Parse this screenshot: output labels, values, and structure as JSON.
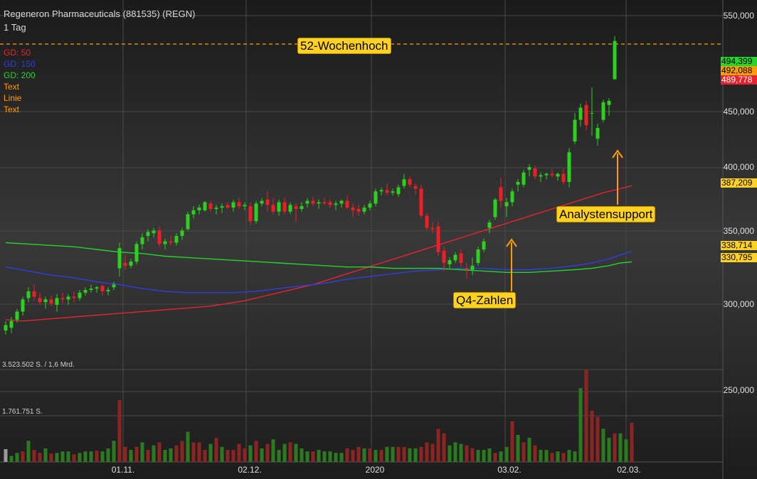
{
  "header": {
    "title": "Regeneron Pharmaceuticals (881535) (REGN)",
    "interval": "1 Tag"
  },
  "legend": [
    {
      "label": "GD: 50",
      "color": "#e8232f"
    },
    {
      "label": "GD: 150",
      "color": "#2f3fe0"
    },
    {
      "label": "GD: 200",
      "color": "#22d62a"
    },
    {
      "label": "Text",
      "color": "#ff9d00"
    },
    {
      "label": "Linie",
      "color": "#ff9d00"
    },
    {
      "label": "Text",
      "color": "#ff9d00"
    }
  ],
  "annotations": {
    "high52": "52-Wochenhoch",
    "analyst": "Analystensupport",
    "q4": "Q4-Zahlen"
  },
  "volume_labels": {
    "max": "3.523.502 S. / 1,6 Mrd.",
    "mid": "1.761.751 S."
  },
  "badges": [
    {
      "value": "494,399",
      "color": "#22d62a"
    },
    {
      "value": "492,088",
      "color": "#ff9d00"
    },
    {
      "value": "489,778",
      "color": "#e8232f"
    },
    {
      "value": "387,209",
      "color": "#ffd21f"
    },
    {
      "value": "338,714",
      "color": "#ffd21f"
    },
    {
      "value": "330,795",
      "color": "#ffd21f"
    }
  ],
  "chart_data": {
    "type": "candlestick",
    "title": "Regeneron Pharmaceuticals (881535) (REGN)",
    "ylim": [
      277,
      560
    ],
    "y_ticks": [
      "550,000",
      "450,000",
      "400,000",
      "350,000",
      "300,000",
      "250,000"
    ],
    "x_ticks": [
      "01.11.",
      "02.12.",
      "2020",
      "03.02.",
      "02.03."
    ],
    "reference_level": 492.088,
    "candles": [
      {
        "o": 280.0,
        "h": 287.0,
        "l": 277.0,
        "c": 284.0
      },
      {
        "o": 282.0,
        "h": 290.0,
        "l": 278.0,
        "c": 287.0
      },
      {
        "o": 288.0,
        "h": 296.0,
        "l": 286.0,
        "c": 294.0
      },
      {
        "o": 294.0,
        "h": 305.0,
        "l": 291.0,
        "c": 303.0
      },
      {
        "o": 304.0,
        "h": 312.0,
        "l": 301.0,
        "c": 309.0
      },
      {
        "o": 309.0,
        "h": 314.0,
        "l": 302.0,
        "c": 305.0
      },
      {
        "o": 304.0,
        "h": 308.0,
        "l": 299.0,
        "c": 301.0
      },
      {
        "o": 301.0,
        "h": 305.0,
        "l": 296.0,
        "c": 303.0
      },
      {
        "o": 303.0,
        "h": 306.0,
        "l": 298.0,
        "c": 300.0
      },
      {
        "o": 299.0,
        "h": 307.0,
        "l": 294.0,
        "c": 304.0
      },
      {
        "o": 304.0,
        "h": 308.0,
        "l": 300.0,
        "c": 303.0
      },
      {
        "o": 303.0,
        "h": 307.0,
        "l": 299.0,
        "c": 305.0
      },
      {
        "o": 305.0,
        "h": 309.0,
        "l": 301.0,
        "c": 304.0
      },
      {
        "o": 304.0,
        "h": 310.0,
        "l": 302.0,
        "c": 308.0
      },
      {
        "o": 308.0,
        "h": 312.0,
        "l": 306.0,
        "c": 310.0
      },
      {
        "o": 310.0,
        "h": 314.0,
        "l": 308.0,
        "c": 311.0
      },
      {
        "o": 311.0,
        "h": 313.0,
        "l": 308.0,
        "c": 312.0
      },
      {
        "o": 313.0,
        "h": 314.0,
        "l": 306.0,
        "c": 309.0
      },
      {
        "o": 309.0,
        "h": 312.0,
        "l": 306.0,
        "c": 310.0
      },
      {
        "o": 312.0,
        "h": 316.0,
        "l": 310.0,
        "c": 314.0
      },
      {
        "o": 326.0,
        "h": 345.0,
        "l": 320.0,
        "c": 341.0
      },
      {
        "o": 330.0,
        "h": 336.0,
        "l": 325.0,
        "c": 328.0
      },
      {
        "o": 328.0,
        "h": 333.0,
        "l": 326.0,
        "c": 331.0
      },
      {
        "o": 331.0,
        "h": 346.0,
        "l": 329.0,
        "c": 344.0
      },
      {
        "o": 344.0,
        "h": 352.0,
        "l": 340.0,
        "c": 349.0
      },
      {
        "o": 350.0,
        "h": 355.0,
        "l": 346.0,
        "c": 353.0
      },
      {
        "o": 352.0,
        "h": 356.0,
        "l": 349.0,
        "c": 354.0
      },
      {
        "o": 354.0,
        "h": 357.0,
        "l": 342.0,
        "c": 344.0
      },
      {
        "o": 344.0,
        "h": 348.0,
        "l": 340.0,
        "c": 346.0
      },
      {
        "o": 346.0,
        "h": 350.0,
        "l": 343.0,
        "c": 345.0
      },
      {
        "o": 345.0,
        "h": 352.0,
        "l": 343.0,
        "c": 350.0
      },
      {
        "o": 350.0,
        "h": 356.0,
        "l": 347.0,
        "c": 354.0
      },
      {
        "o": 355.0,
        "h": 368.0,
        "l": 354.0,
        "c": 366.0
      },
      {
        "o": 366.0,
        "h": 372.0,
        "l": 363.0,
        "c": 369.0
      },
      {
        "o": 369.0,
        "h": 373.0,
        "l": 366.0,
        "c": 371.0
      },
      {
        "o": 369.0,
        "h": 376.0,
        "l": 368.0,
        "c": 375.0
      },
      {
        "o": 374.0,
        "h": 376.0,
        "l": 368.0,
        "c": 370.0
      },
      {
        "o": 370.0,
        "h": 373.0,
        "l": 366.0,
        "c": 371.0
      },
      {
        "o": 371.0,
        "h": 374.0,
        "l": 367.0,
        "c": 372.0
      },
      {
        "o": 373.0,
        "h": 375.0,
        "l": 370.0,
        "c": 371.0
      },
      {
        "o": 371.0,
        "h": 377.0,
        "l": 368.0,
        "c": 375.0
      },
      {
        "o": 375.0,
        "h": 378.0,
        "l": 370.0,
        "c": 372.0
      },
      {
        "o": 372.0,
        "h": 375.0,
        "l": 369.0,
        "c": 373.0
      },
      {
        "o": 372.0,
        "h": 375.0,
        "l": 358.0,
        "c": 361.0
      },
      {
        "o": 361.0,
        "h": 376.0,
        "l": 359.0,
        "c": 374.0
      },
      {
        "o": 374.0,
        "h": 378.0,
        "l": 372.0,
        "c": 376.0
      },
      {
        "o": 377.0,
        "h": 383.0,
        "l": 368.0,
        "c": 373.0
      },
      {
        "o": 373.0,
        "h": 378.0,
        "l": 366.0,
        "c": 368.0
      },
      {
        "o": 368.0,
        "h": 377.0,
        "l": 365.0,
        "c": 375.0
      },
      {
        "o": 375.0,
        "h": 378.0,
        "l": 366.0,
        "c": 368.0
      },
      {
        "o": 368.0,
        "h": 375.0,
        "l": 366.0,
        "c": 373.0
      },
      {
        "o": 372.0,
        "h": 374.0,
        "l": 360.0,
        "c": 370.0
      },
      {
        "o": 370.0,
        "h": 375.0,
        "l": 368.0,
        "c": 372.0
      },
      {
        "o": 374.0,
        "h": 378.0,
        "l": 371.0,
        "c": 376.0
      },
      {
        "o": 376.0,
        "h": 379.0,
        "l": 372.0,
        "c": 374.0
      },
      {
        "o": 374.0,
        "h": 377.0,
        "l": 370.0,
        "c": 375.0
      },
      {
        "o": 375.0,
        "h": 378.0,
        "l": 373.0,
        "c": 374.0
      },
      {
        "o": 375.0,
        "h": 377.0,
        "l": 371.0,
        "c": 373.0
      },
      {
        "o": 373.0,
        "h": 376.0,
        "l": 369.0,
        "c": 374.0
      },
      {
        "o": 374.0,
        "h": 377.0,
        "l": 371.0,
        "c": 376.0
      },
      {
        "o": 376.0,
        "h": 380.0,
        "l": 370.0,
        "c": 371.0
      },
      {
        "o": 371.0,
        "h": 374.0,
        "l": 364.0,
        "c": 369.0
      },
      {
        "o": 370.0,
        "h": 373.0,
        "l": 365.0,
        "c": 368.0
      },
      {
        "o": 368.0,
        "h": 373.0,
        "l": 366.0,
        "c": 371.0
      },
      {
        "o": 371.0,
        "h": 376.0,
        "l": 369.0,
        "c": 374.0
      },
      {
        "o": 374.0,
        "h": 385.0,
        "l": 372.0,
        "c": 383.0
      },
      {
        "o": 383.0,
        "h": 386.0,
        "l": 380.0,
        "c": 384.0
      },
      {
        "o": 384.0,
        "h": 389.0,
        "l": 380.0,
        "c": 382.0
      },
      {
        "o": 382.0,
        "h": 385.0,
        "l": 380.0,
        "c": 383.0
      },
      {
        "o": 381.0,
        "h": 388.0,
        "l": 379.0,
        "c": 386.0
      },
      {
        "o": 387.0,
        "h": 396.0,
        "l": 385.0,
        "c": 392.0
      },
      {
        "o": 392.0,
        "h": 394.0,
        "l": 386.0,
        "c": 388.0
      },
      {
        "o": 387.0,
        "h": 389.0,
        "l": 381.0,
        "c": 385.0
      },
      {
        "o": 385.0,
        "h": 388.0,
        "l": 363.0,
        "c": 365.0
      },
      {
        "o": 365.0,
        "h": 367.0,
        "l": 354.0,
        "c": 356.0
      },
      {
        "o": 356.0,
        "h": 360.0,
        "l": 352.0,
        "c": 355.0
      },
      {
        "o": 357.0,
        "h": 361.0,
        "l": 335.0,
        "c": 338.0
      },
      {
        "o": 339.0,
        "h": 342.0,
        "l": 324.0,
        "c": 330.0
      },
      {
        "o": 329.0,
        "h": 334.0,
        "l": 326.0,
        "c": 332.0
      },
      {
        "o": 332.0,
        "h": 338.0,
        "l": 330.0,
        "c": 336.0
      },
      {
        "o": 337.0,
        "h": 340.0,
        "l": 327.0,
        "c": 330.0
      },
      {
        "o": 326.0,
        "h": 330.0,
        "l": 318.0,
        "c": 325.0
      },
      {
        "o": 325.0,
        "h": 334.0,
        "l": 321.0,
        "c": 328.0
      },
      {
        "o": 330.0,
        "h": 342.0,
        "l": 328.0,
        "c": 340.0
      },
      {
        "o": 340.0,
        "h": 348.0,
        "l": 338.0,
        "c": 346.0
      },
      {
        "o": 356.0,
        "h": 362.0,
        "l": 352.0,
        "c": 360.0
      },
      {
        "o": 364.0,
        "h": 378.0,
        "l": 362.0,
        "c": 377.0
      },
      {
        "o": 386.0,
        "h": 393.0,
        "l": 371.0,
        "c": 376.0
      },
      {
        "o": 372.0,
        "h": 378.0,
        "l": 364.0,
        "c": 375.0
      },
      {
        "o": 375.0,
        "h": 385.0,
        "l": 372.0,
        "c": 383.0
      },
      {
        "o": 388.0,
        "h": 392.0,
        "l": 383.0,
        "c": 390.0
      },
      {
        "o": 388.0,
        "h": 399.0,
        "l": 386.0,
        "c": 397.0
      },
      {
        "o": 399.0,
        "h": 403.0,
        "l": 394.0,
        "c": 401.0
      },
      {
        "o": 400.0,
        "h": 402.0,
        "l": 392.0,
        "c": 394.0
      },
      {
        "o": 394.0,
        "h": 397.0,
        "l": 390.0,
        "c": 395.0
      },
      {
        "o": 395.0,
        "h": 397.0,
        "l": 392.0,
        "c": 396.0
      },
      {
        "o": 396.0,
        "h": 399.0,
        "l": 393.0,
        "c": 395.0
      },
      {
        "o": 394.0,
        "h": 397.0,
        "l": 391.0,
        "c": 396.0
      },
      {
        "o": 396.0,
        "h": 400.0,
        "l": 388.0,
        "c": 390.0
      },
      {
        "o": 390.0,
        "h": 415.0,
        "l": 386.0,
        "c": 412.0
      },
      {
        "o": 420.0,
        "h": 441.0,
        "l": 418.0,
        "c": 436.0
      },
      {
        "o": 436.0,
        "h": 448.0,
        "l": 431.0,
        "c": 445.0
      },
      {
        "o": 447.0,
        "h": 450.0,
        "l": 428.0,
        "c": 432.0
      },
      {
        "o": 441.0,
        "h": 460.0,
        "l": 424.0,
        "c": 441.0
      },
      {
        "o": 422.0,
        "h": 433.0,
        "l": 417.0,
        "c": 430.0
      },
      {
        "o": 436.0,
        "h": 451.0,
        "l": 434.0,
        "c": 449.0
      },
      {
        "o": 447.0,
        "h": 452.0,
        "l": 439.0,
        "c": 450.0
      },
      {
        "o": 466.0,
        "h": 498.0,
        "l": 466.0,
        "c": 494.4
      }
    ],
    "series": [
      {
        "name": "GD: 50",
        "values": [
          288.0,
          287.0,
          288.0,
          289.0,
          290.0,
          291.0,
          292.0,
          293.0,
          294.0,
          295.0,
          296.0,
          297.0,
          298.0,
          300.0,
          302.0,
          305.0,
          308.0,
          311.0,
          314.0,
          318.0,
          322.0,
          326.0,
          330.0,
          334.0,
          338.0,
          342.0,
          346.0,
          350.0,
          354.0,
          358.0,
          362.0,
          366.0,
          370.0,
          374.0,
          378.0,
          382.0,
          385.0,
          387.2
        ],
        "xi": [
          0,
          3,
          6,
          9,
          12,
          15,
          18,
          21,
          24,
          27,
          30,
          33,
          36,
          39,
          42,
          45,
          48,
          51,
          54,
          57,
          60,
          63,
          66,
          69,
          72,
          75,
          78,
          81,
          84,
          87,
          90,
          93,
          96,
          99,
          102,
          105,
          108,
          110
        ]
      },
      {
        "name": "GD: 150",
        "values": [
          327.0,
          324.0,
          321.0,
          319.0,
          316.0,
          314.0,
          311.0,
          309.0,
          308.0,
          308.0,
          308.0,
          309.0,
          311.0,
          313.0,
          315.0,
          318.0,
          320.0,
          322.0,
          324.0,
          325.0,
          326.0,
          326.0,
          325.0,
          325.0,
          326.0,
          328.0,
          330.0,
          333.0,
          336.0,
          338.7
        ],
        "xi": [
          0,
          4,
          8,
          12,
          16,
          20,
          24,
          28,
          32,
          36,
          40,
          44,
          48,
          52,
          56,
          60,
          64,
          68,
          72,
          76,
          80,
          84,
          88,
          92,
          96,
          100,
          103,
          106,
          108,
          110
        ]
      },
      {
        "name": "GD: 200",
        "values": [
          345.0,
          344.0,
          343.0,
          342.0,
          340.0,
          338.0,
          337.0,
          335.0,
          334.0,
          333.0,
          332.0,
          331.0,
          330.0,
          329.0,
          328.0,
          327.0,
          327.0,
          326.0,
          326.0,
          326.0,
          325.0,
          324.0,
          323.0,
          323.0,
          324.0,
          325.0,
          326.0,
          328.0,
          330.0,
          330.8
        ],
        "xi": [
          0,
          4,
          8,
          12,
          16,
          20,
          24,
          28,
          32,
          36,
          40,
          44,
          48,
          52,
          56,
          60,
          64,
          68,
          72,
          76,
          80,
          84,
          88,
          92,
          96,
          100,
          103,
          106,
          108,
          110
        ]
      }
    ],
    "volume": [
      0.17,
      0.08,
      0.12,
      0.14,
      0.28,
      0.16,
      0.12,
      0.18,
      0.11,
      0.12,
      0.14,
      0.14,
      0.1,
      0.12,
      0.14,
      0.14,
      0.15,
      0.14,
      0.18,
      0.28,
      0.82,
      0.2,
      0.16,
      0.2,
      0.26,
      0.16,
      0.22,
      0.26,
      0.16,
      0.18,
      0.22,
      0.28,
      0.4,
      0.26,
      0.26,
      0.16,
      0.24,
      0.32,
      0.2,
      0.16,
      0.16,
      0.24,
      0.18,
      0.22,
      0.28,
      0.18,
      0.24,
      0.3,
      0.16,
      0.24,
      0.26,
      0.24,
      0.18,
      0.14,
      0.14,
      0.16,
      0.14,
      0.14,
      0.12,
      0.12,
      0.18,
      0.16,
      0.2,
      0.18,
      0.18,
      0.16,
      0.16,
      0.2,
      0.2,
      0.2,
      0.2,
      0.18,
      0.18,
      0.2,
      0.26,
      0.24,
      0.44,
      0.38,
      0.22,
      0.26,
      0.24,
      0.22,
      0.18,
      0.16,
      0.16,
      0.18,
      0.12,
      0.14,
      0.2,
      0.54,
      0.36,
      0.26,
      0.32,
      0.22,
      0.16,
      0.16,
      0.12,
      0.14,
      0.12,
      0.16,
      0.14,
      0.98,
      1.22,
      0.68,
      0.6,
      0.44,
      0.32,
      0.38,
      0.38,
      0.3,
      0.52
    ],
    "volume_colors": "gggrgrrgrgggrgggrgggrrgrgrgrggrrgrrrgrgrrrrgrgrgggrgggrgggggrrrgrgrggrrggrrrrrgggrrgggrggrgrgrggrgrgggrrrggrgg"
  }
}
